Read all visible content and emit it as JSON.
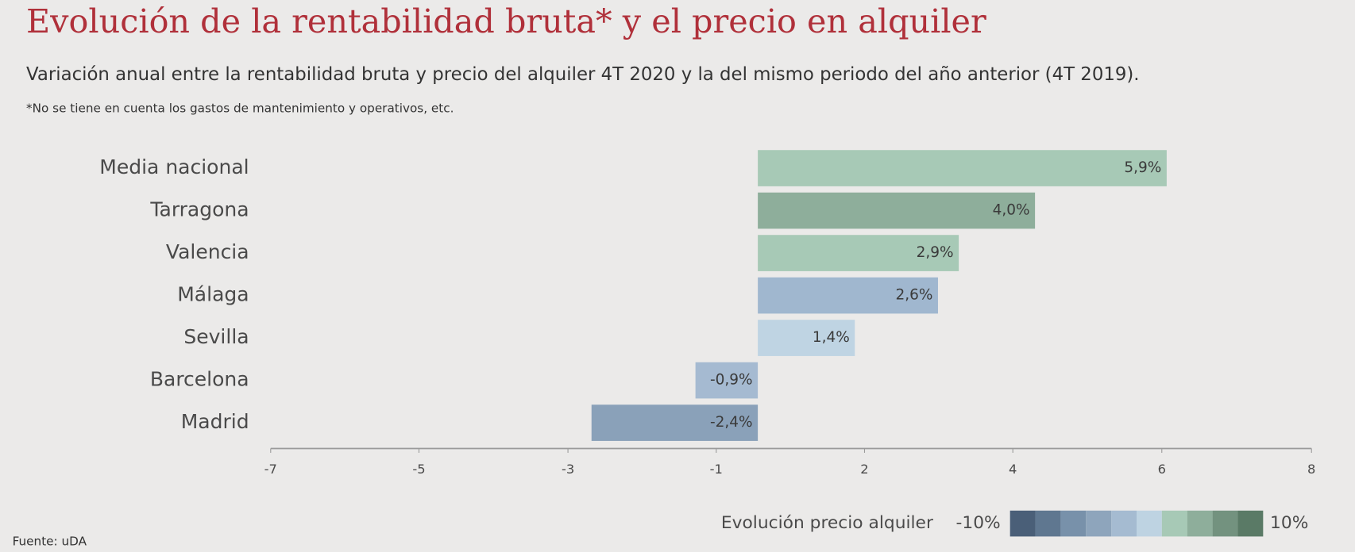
{
  "chart_data": {
    "type": "bar",
    "orientation": "horizontal",
    "title": "Evolución de la rentabilidad bruta* y el precio en alquiler",
    "subtitle": "Variación anual entre la rentabilidad bruta y precio del alquiler 4T 2020 y la del mismo periodo del año anterior (4T 2019).",
    "note": "*No se tiene en cuenta los gastos de mantenimiento y operativos, etc.",
    "source": "Fuente: uDA",
    "categories": [
      "Media nacional",
      "Tarragona",
      "Valencia",
      "Málaga",
      "Sevilla",
      "Barcelona",
      "Madrid"
    ],
    "values": [
      5.9,
      4.0,
      2.9,
      2.6,
      1.4,
      -0.9,
      -2.4
    ],
    "value_labels": [
      "5,9%",
      "4,0%",
      "2,9%",
      "2,6%",
      "1,4%",
      "-0,9%",
      "-2,4%"
    ],
    "colors": [
      "#a7c9b6",
      "#8eae9b",
      "#a7c9b6",
      "#a0b7cf",
      "#bfd4e3",
      "#a5bad1",
      "#8aa1b9"
    ],
    "xlim": [
      -7.03,
      7.99
    ],
    "xticks": [
      {
        "value": -7.03,
        "label": "-7"
      },
      {
        "value": -4.89,
        "label": "-5"
      },
      {
        "value": -2.74,
        "label": "-3"
      },
      {
        "value": -0.6,
        "label": "-1"
      },
      {
        "value": 1.54,
        "label": "2"
      },
      {
        "value": 3.68,
        "label": "4"
      },
      {
        "value": 5.83,
        "label": "6"
      },
      {
        "value": 7.99,
        "label": "8"
      }
    ],
    "legend": {
      "title": "Evolución precio alquiler",
      "min_label": "-10%",
      "max_label": "10%",
      "colors": [
        "#4a5f78",
        "#5f7790",
        "#7891aa",
        "#8ea5bc",
        "#a5bbd1",
        "#bed3e2",
        "#a7c9b6",
        "#8eae9b",
        "#73927f",
        "#5a7a66"
      ]
    }
  }
}
